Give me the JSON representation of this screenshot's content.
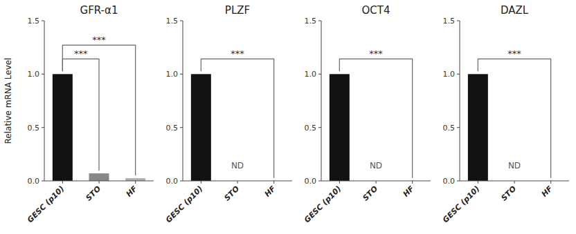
{
  "chart_data": [
    {
      "type": "bar",
      "title": "GFR-α1",
      "ylabel": "Relative mRNA Level",
      "categories": [
        "GESC (p10)",
        "STO",
        "HF"
      ],
      "values": [
        1.0,
        0.07,
        0.025
      ],
      "colors": [
        "#111111",
        "#888888",
        "#b0b0b0"
      ],
      "significance": [
        {
          "from": "GESC (p10)",
          "to": "STO",
          "label": "***"
        },
        {
          "from": "GESC (p10)",
          "to": "HF",
          "label": "***"
        }
      ],
      "annotations": [],
      "ylim": [
        0,
        1.5
      ],
      "yticks": [
        {
          "value": 0,
          "label": "0.0"
        },
        {
          "value": 0.5,
          "label": "0.5"
        },
        {
          "value": 1,
          "label": "1.0"
        },
        {
          "value": 1.5,
          "label": "1.5"
        }
      ]
    },
    {
      "type": "bar",
      "title": "PLZF",
      "categories": [
        "GESC (p10)",
        "STO",
        "HF"
      ],
      "values": [
        1.0,
        0.0,
        0.0
      ],
      "colors": [
        "#111111",
        "#111111",
        "#111111"
      ],
      "significance": [
        {
          "from": "GESC (p10)",
          "to": "HF",
          "label": "***"
        }
      ],
      "annotations": [
        {
          "text": "ND",
          "category": "STO"
        }
      ],
      "ylim": [
        0,
        1.5
      ],
      "yticks": [
        {
          "value": 0,
          "label": "0.0"
        },
        {
          "value": 0.5,
          "label": "0.5"
        },
        {
          "value": 1,
          "label": "1.0"
        },
        {
          "value": 1.5,
          "label": "1.5"
        }
      ]
    },
    {
      "type": "bar",
      "title": "OCT4",
      "categories": [
        "GESC (p10)",
        "STO",
        "HF"
      ],
      "values": [
        1.0,
        0.0,
        0.0
      ],
      "colors": [
        "#111111",
        "#111111",
        "#111111"
      ],
      "significance": [
        {
          "from": "GESC (p10)",
          "to": "HF",
          "label": "***"
        }
      ],
      "annotations": [
        {
          "text": "ND",
          "category": "STO"
        }
      ],
      "ylim": [
        0,
        1.5
      ],
      "yticks": [
        {
          "value": 0,
          "label": "0.0"
        },
        {
          "value": 0.5,
          "label": "0.5"
        },
        {
          "value": 1,
          "label": "1.0"
        },
        {
          "value": 1.5,
          "label": "1.5"
        }
      ]
    },
    {
      "type": "bar",
      "title": "DAZL",
      "categories": [
        "GESC (p10)",
        "STO",
        "HF"
      ],
      "values": [
        1.0,
        0.0,
        0.0
      ],
      "colors": [
        "#111111",
        "#111111",
        "#111111"
      ],
      "significance": [
        {
          "from": "GESC (p10)",
          "to": "HF",
          "label": "***"
        }
      ],
      "annotations": [
        {
          "text": "ND",
          "category": "STO"
        }
      ],
      "ylim": [
        0,
        1.5
      ],
      "yticks": [
        {
          "value": 0,
          "label": "0.0"
        },
        {
          "value": 0.5,
          "label": "0.5"
        },
        {
          "value": 1,
          "label": "1.0"
        },
        {
          "value": 1.5,
          "label": "1.5"
        }
      ]
    }
  ]
}
